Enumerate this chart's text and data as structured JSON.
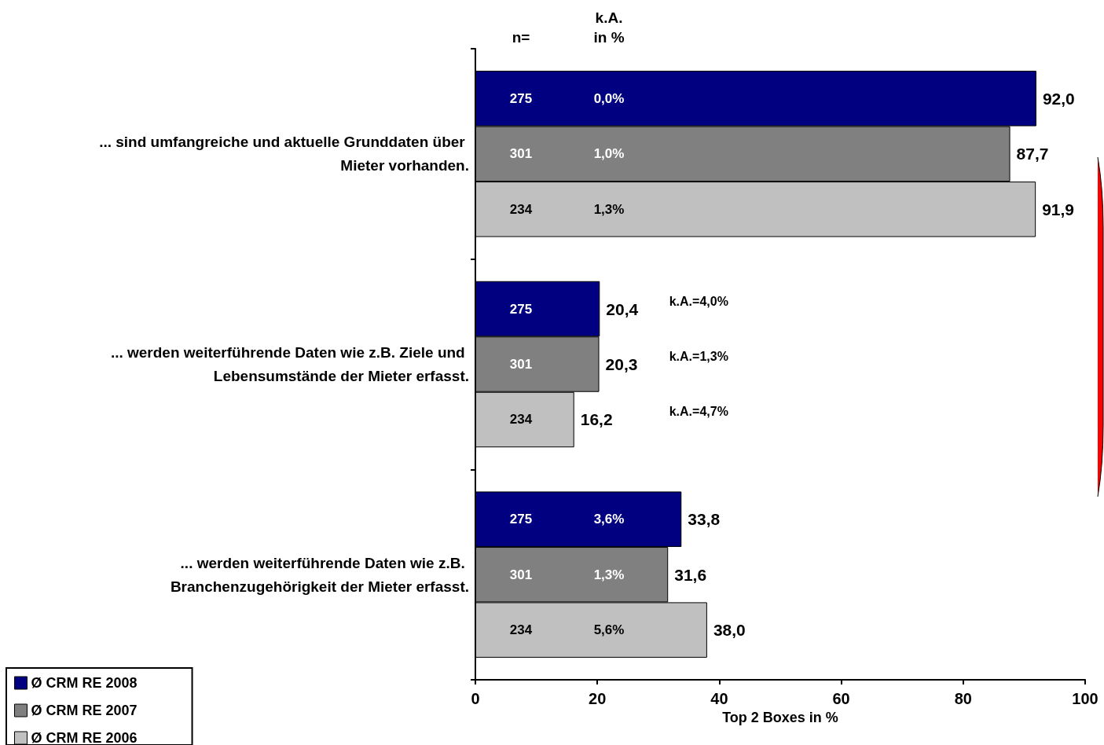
{
  "chart_data": {
    "type": "bar",
    "orientation": "horizontal",
    "xlabel": "Top 2 Boxes in %",
    "categories": [
      "... sind umfangreiche und aktuelle Grunddaten über Mieter vorhanden.",
      "... werden weiterführende Daten wie z.B. Ziele und Lebensumstände der Mieter erfasst.",
      "... werden weiterführende Daten wie z.B. Branchenzugehörigkeit der Mieter erfasst."
    ],
    "series": [
      {
        "name": "Ø CRM RE 2008",
        "color": "#000080",
        "values": [
          92.0,
          20.4,
          33.8
        ],
        "value_labels": [
          "92,0",
          "20,4",
          "33,8"
        ]
      },
      {
        "name": "Ø CRM RE 2007",
        "color": "#808080",
        "values": [
          87.7,
          20.3,
          31.6
        ],
        "value_labels": [
          "87,7",
          "20,3",
          "31,6"
        ]
      },
      {
        "name": "Ø CRM RE 2006",
        "color": "#c0c0c0",
        "values": [
          91.9,
          16.2,
          38.0
        ],
        "value_labels": [
          "91,9",
          "16,2",
          "38,0"
        ]
      }
    ],
    "xlim": [
      0,
      100
    ],
    "xticks": [
      0,
      20,
      40,
      60,
      80,
      100
    ],
    "grid": false,
    "legend": "bottom left",
    "annotations": [
      "n=",
      "k.A.\nin %",
      "275",
      "301",
      "234",
      "0,0%",
      "1,0%",
      "1,3%",
      "275",
      "301",
      "234",
      "k.A.=4,0%",
      "k.A.=1,3%",
      "k.A.=4,7%",
      "275",
      "301",
      "234",
      "3,6%",
      "1,3%",
      "5,6%"
    ]
  }
}
